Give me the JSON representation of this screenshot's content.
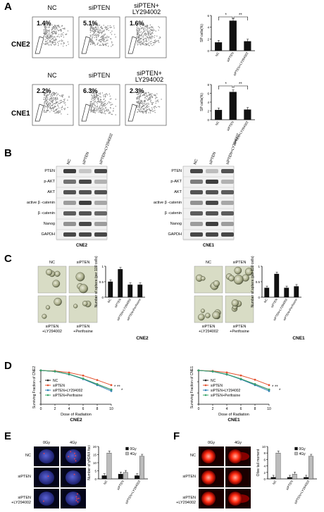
{
  "panel_letters": {
    "a": "A",
    "b": "B",
    "c": "C",
    "d": "D",
    "e": "E",
    "f": "F"
  },
  "panelA": {
    "row_labels": [
      "CNE2",
      "CNE1"
    ],
    "col_labels": [
      "NC",
      "siPTEN",
      "siPTEN+",
      "LY294002"
    ],
    "cne2_pcts": [
      "1.4%",
      "5.1%",
      "1.6%"
    ],
    "cne1_pcts": [
      "2.2%",
      "6.3%",
      "2.3%"
    ],
    "stats": [
      "*",
      "**"
    ]
  },
  "panelB": {
    "cols": [
      "NC",
      "siPTEN",
      "siPTEN+LY294002"
    ],
    "rows": [
      "PTEN",
      "p-AKT",
      "AKT",
      "active β -catenin",
      "β -catenin",
      "Nanog",
      "GAPDH"
    ],
    "cell_lines": [
      "CNE2",
      "CNE1"
    ]
  },
  "panelC": {
    "img_labels": [
      "NC",
      "siPTEN",
      "siPTEN",
      "siPTEN",
      "+LY294002",
      "+Perifosine"
    ],
    "cell_lines": [
      "CNE2",
      "CNE1"
    ]
  },
  "panelD": {
    "legend": [
      "NC",
      "siPTEN",
      "siPTEN+LY294002",
      "siPTEN+Perifosine"
    ],
    "xlabel": "Dose of Radiation",
    "ylabel_cne2": "Surviving Fraction of CNE2",
    "ylabel_cne1": "Surviving Fraction of CNE1",
    "cell_lines": [
      "CNE2",
      "CNE1"
    ],
    "colors": [
      "#222222",
      "#e4502d",
      "#2f7fb7",
      "#3aa56a"
    ]
  },
  "panelE": {
    "cols": [
      "0Gy",
      "4Gy"
    ],
    "rows": [
      "NC",
      "siPTEN",
      "siPTEN",
      "+LY294002"
    ]
  },
  "panelF": {
    "cols": [
      "0Gy",
      "4Gy"
    ],
    "rows": [
      "NC",
      "siPTEN",
      "siPTEN",
      "+LY294002"
    ]
  },
  "chart_data": [
    {
      "type": "bar",
      "title": "",
      "categories": [
        "NC",
        "siPTEN",
        "siPTEN+LY294002"
      ],
      "values": [
        1.4,
        5.1,
        1.6
      ],
      "ylabel": "SP cells(%)",
      "ylim": [
        0,
        6
      ],
      "yticks": [
        0,
        2,
        4,
        6
      ],
      "stats": [
        "*",
        "**"
      ]
    },
    {
      "type": "bar",
      "title": "",
      "categories": [
        "NC",
        "siPTEN",
        "siPTEN+LY294002"
      ],
      "values": [
        2.2,
        6.3,
        2.3
      ],
      "ylabel": "SP cells(%)",
      "ylim": [
        0,
        8
      ],
      "yticks": [
        0,
        2,
        4,
        6,
        8
      ],
      "stats": [
        "*",
        "**"
      ]
    },
    {
      "type": "bar",
      "title": "",
      "categories": [
        "NC",
        "siPTEN",
        "siPTEN+LY294002",
        "siPTEN+Perifosine"
      ],
      "values": [
        0.5,
        0.9,
        0.4,
        0.4
      ],
      "ylabel": "Number of sphere (per 100 cells)",
      "ylim": [
        0,
        1.0
      ],
      "yticks": [
        0,
        0.5,
        1.0
      ]
    },
    {
      "type": "bar",
      "title": "",
      "categories": [
        "NC",
        "siPTEN",
        "siPTEN+LY294002",
        "siPTEN+Perifosine"
      ],
      "values": [
        0.3,
        0.75,
        0.3,
        0.35
      ],
      "ylabel": "Number of sphere (per 100 cells)",
      "ylim": [
        0,
        1.0
      ],
      "yticks": [
        0,
        0.5,
        1.0
      ]
    },
    {
      "type": "line",
      "title": "",
      "x": [
        0,
        2,
        4,
        6,
        8,
        10
      ],
      "xlabel": "Dose of Radiation",
      "ylabel": "Surviving Fraction of CNE2",
      "ylog": true,
      "ylim": [
        0.001,
        1
      ],
      "series": [
        {
          "name": "NC",
          "values": [
            1,
            0.82,
            0.45,
            0.18,
            0.06,
            0.02
          ]
        },
        {
          "name": "siPTEN",
          "values": [
            1,
            0.9,
            0.65,
            0.35,
            0.14,
            0.05
          ]
        },
        {
          "name": "siPTEN+LY294002",
          "values": [
            1,
            0.82,
            0.45,
            0.17,
            0.05,
            0.015
          ]
        },
        {
          "name": "siPTEN+Perifosine",
          "values": [
            1,
            0.84,
            0.47,
            0.19,
            0.06,
            0.02
          ]
        }
      ]
    },
    {
      "type": "line",
      "title": "",
      "x": [
        0,
        2,
        4,
        6,
        8,
        10
      ],
      "xlabel": "Dose of Radiation",
      "ylabel": "Surviving Fraction of CNE1",
      "ylog": true,
      "ylim": [
        0.001,
        1
      ],
      "series": [
        {
          "name": "NC",
          "values": [
            1,
            0.82,
            0.44,
            0.17,
            0.06,
            0.02
          ]
        },
        {
          "name": "siPTEN",
          "values": [
            1,
            0.9,
            0.66,
            0.36,
            0.15,
            0.05
          ]
        },
        {
          "name": "siPTEN+LY294002",
          "values": [
            1,
            0.81,
            0.44,
            0.16,
            0.05,
            0.015
          ]
        },
        {
          "name": "siPTEN+Perifosine",
          "values": [
            1,
            0.83,
            0.46,
            0.18,
            0.06,
            0.02
          ]
        }
      ]
    },
    {
      "type": "bar",
      "title": "",
      "categories": [
        "NC",
        "siPTEN",
        "siPTEN+LY294002"
      ],
      "ylabel": "Number of γH2AX foci",
      "ylim": [
        0,
        20
      ],
      "yticks": [
        0,
        5,
        10,
        15,
        20
      ],
      "series": [
        {
          "name": "0Gy",
          "values": [
            2,
            3,
            2
          ]
        },
        {
          "name": "4Gy",
          "values": [
            16,
            4,
            14
          ]
        }
      ]
    },
    {
      "type": "bar",
      "title": "",
      "categories": [
        "NC",
        "siPTEN",
        "siPTEN+LY294002"
      ],
      "ylabel": "Olive tail moment",
      "ylim": [
        0,
        10
      ],
      "yticks": [
        0,
        2,
        4,
        6,
        8,
        10
      ],
      "series": [
        {
          "name": "0Gy",
          "values": [
            0.5,
            0.5,
            0.5
          ]
        },
        {
          "name": "4Gy",
          "values": [
            8,
            1.5,
            7
          ]
        }
      ]
    }
  ]
}
